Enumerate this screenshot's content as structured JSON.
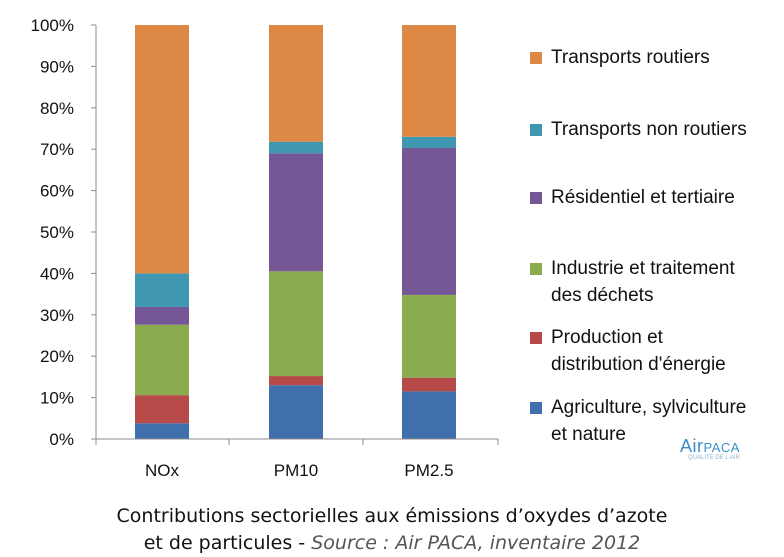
{
  "chart_data": {
    "type": "bar",
    "stacked": true,
    "categories": [
      "NOx",
      "PM10",
      "PM2.5"
    ],
    "y_ticks": [
      "0%",
      "10%",
      "20%",
      "30%",
      "40%",
      "50%",
      "60%",
      "70%",
      "80%",
      "90%",
      "100%"
    ],
    "ylim": [
      0,
      100
    ],
    "grid": false,
    "legend_position": "right",
    "series": [
      {
        "name": "Agriculture, sylviculture et nature",
        "color": "#3f6fad",
        "values": [
          3.8,
          13.0,
          11.5
        ]
      },
      {
        "name": "Production et distribution d'énergie",
        "color": "#b54a48",
        "values": [
          6.8,
          2.2,
          3.3
        ]
      },
      {
        "name": "Industrie et traitement des déchets",
        "color": "#8aab4e",
        "values": [
          17.0,
          25.3,
          20.0
        ]
      },
      {
        "name": "Résidentiel et tertiaire",
        "color": "#755795",
        "values": [
          4.3,
          28.5,
          35.5
        ]
      },
      {
        "name": "Transports non routiers",
        "color": "#3f97b1",
        "values": [
          8.1,
          2.8,
          2.7
        ]
      },
      {
        "name": "Transports routiers",
        "color": "#dd8844",
        "values": [
          60.0,
          28.2,
          27.0
        ]
      }
    ]
  },
  "legend": {
    "items": [
      {
        "lines": [
          "Transports routiers"
        ],
        "color": "#dd8844"
      },
      {
        "lines": [
          "Transports non routiers"
        ],
        "color": "#3f97b1"
      },
      {
        "lines": [
          "Résidentiel et tertiaire"
        ],
        "color": "#755795"
      },
      {
        "lines": [
          "Industrie et traitement",
          "des déchets"
        ],
        "color": "#8aab4e"
      },
      {
        "lines": [
          "Production et",
          "distribution d'énergie"
        ],
        "color": "#b54a48"
      },
      {
        "lines": [
          "Agriculture, sylviculture",
          "et nature"
        ],
        "color": "#3f6fad"
      }
    ]
  },
  "logo": {
    "text_main": "Air",
    "text_sub": "PACA",
    "tagline": "QUALITÉ DE L'AIR"
  },
  "caption": {
    "line1": "Contributions sectorielles aux émissions d’oxydes d’azote",
    "line2_main": "et de particules - ",
    "line2_source": "Source : Air PACA, inventaire 2012"
  }
}
